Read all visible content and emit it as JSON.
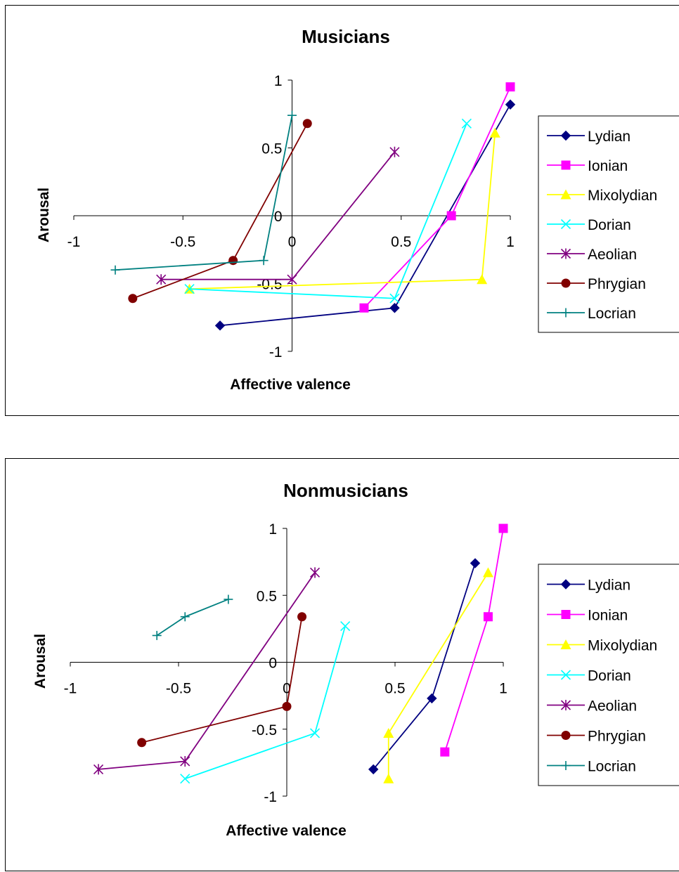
{
  "chart_data": [
    {
      "type": "line",
      "title": "Musicians",
      "xlabel": "Affective valence",
      "ylabel": "Arousal",
      "xlim": [
        -1,
        1
      ],
      "ylim": [
        -1,
        1
      ],
      "x_ticks": [
        "-1",
        "-0.5",
        "0",
        "0.5",
        "1"
      ],
      "y_ticks": [
        "1",
        "0.5",
        "0",
        "-0.5",
        "-1"
      ],
      "legend_position": "right",
      "grid": false,
      "series": [
        {
          "name": "Lydian",
          "color": "#000080",
          "marker": "diamond",
          "points": [
            [
              -0.33,
              -0.81
            ],
            [
              0.47,
              -0.68
            ],
            [
              1.0,
              0.82
            ]
          ]
        },
        {
          "name": "Ionian",
          "color": "#FF00FF",
          "marker": "square",
          "points": [
            [
              0.33,
              -0.68
            ],
            [
              0.73,
              0.0
            ],
            [
              1.0,
              0.95
            ]
          ]
        },
        {
          "name": "Mixolydian",
          "color": "#FFFF00",
          "marker": "triangle",
          "points": [
            [
              -0.47,
              -0.54
            ],
            [
              0.87,
              -0.47
            ],
            [
              0.93,
              0.61
            ]
          ]
        },
        {
          "name": "Dorian",
          "color": "#00FFFF",
          "marker": "x",
          "points": [
            [
              -0.47,
              -0.54
            ],
            [
              0.47,
              -0.61
            ],
            [
              0.8,
              0.68
            ]
          ]
        },
        {
          "name": "Aeolian",
          "color": "#800080",
          "marker": "star",
          "points": [
            [
              -0.6,
              -0.47
            ],
            [
              0.0,
              -0.47
            ],
            [
              0.47,
              0.47
            ]
          ]
        },
        {
          "name": "Phrygian",
          "color": "#800000",
          "marker": "circle",
          "points": [
            [
              -0.73,
              -0.61
            ],
            [
              -0.27,
              -0.33
            ],
            [
              0.07,
              0.68
            ]
          ]
        },
        {
          "name": "Locrian",
          "color": "#008080",
          "marker": "plus",
          "points": [
            [
              -0.81,
              -0.4
            ],
            [
              -0.13,
              -0.33
            ],
            [
              0.0,
              0.74
            ]
          ]
        }
      ]
    },
    {
      "type": "line",
      "title": "Nonmusicians",
      "xlabel": "Affective valence",
      "ylabel": "Arousal",
      "xlim": [
        -1,
        1
      ],
      "ylim": [
        -1,
        1
      ],
      "x_ticks": [
        "-1",
        "-0.5",
        "0",
        "0.5",
        "1"
      ],
      "y_ticks": [
        "1",
        "0.5",
        "0",
        "-0.5",
        "-1"
      ],
      "legend_position": "right",
      "grid": false,
      "series": [
        {
          "name": "Lydian",
          "color": "#000080",
          "marker": "diamond",
          "points": [
            [
              0.4,
              -0.8
            ],
            [
              0.67,
              -0.27
            ],
            [
              0.87,
              0.74
            ]
          ]
        },
        {
          "name": "Ionian",
          "color": "#FF00FF",
          "marker": "square",
          "points": [
            [
              0.73,
              -0.67
            ],
            [
              0.93,
              0.34
            ],
            [
              1.0,
              1.0
            ]
          ]
        },
        {
          "name": "Mixolydian",
          "color": "#FFFF00",
          "marker": "triangle",
          "points": [
            [
              0.47,
              -0.87
            ],
            [
              0.47,
              -0.53
            ],
            [
              0.93,
              0.67
            ]
          ]
        },
        {
          "name": "Dorian",
          "color": "#00FFFF",
          "marker": "x",
          "points": [
            [
              -0.47,
              -0.87
            ],
            [
              0.13,
              -0.53
            ],
            [
              0.27,
              0.27
            ]
          ]
        },
        {
          "name": "Aeolian",
          "color": "#800080",
          "marker": "star",
          "points": [
            [
              -0.87,
              -0.8
            ],
            [
              -0.47,
              -0.74
            ],
            [
              0.13,
              0.67
            ]
          ]
        },
        {
          "name": "Phrygian",
          "color": "#800000",
          "marker": "circle",
          "points": [
            [
              -0.67,
              -0.6
            ],
            [
              0.0,
              -0.33
            ],
            [
              0.07,
              0.34
            ]
          ]
        },
        {
          "name": "Locrian",
          "color": "#008080",
          "marker": "plus",
          "points": [
            [
              -0.6,
              0.2
            ],
            [
              -0.47,
              0.34
            ],
            [
              -0.27,
              0.47
            ]
          ]
        }
      ]
    }
  ]
}
